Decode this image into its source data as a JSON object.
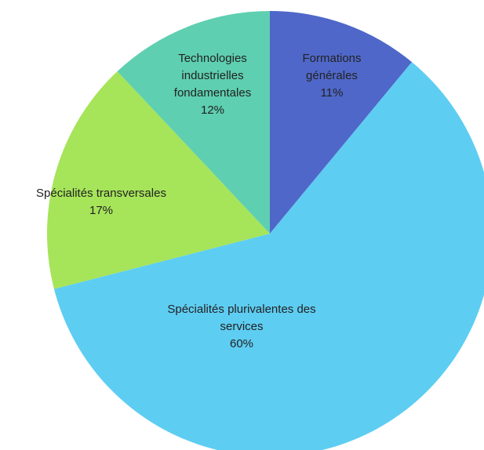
{
  "chart_data": {
    "type": "pie",
    "categories": [
      "Formations générales",
      "Spécialités plurivalentes des services",
      "Spécialités transversales",
      "Technologies industrielles fondamentales"
    ],
    "values": [
      11,
      60,
      17,
      12
    ],
    "value_labels": [
      "11%",
      "60%",
      "17%",
      "12%"
    ],
    "colors": [
      "#4f67c9",
      "#5ecdf2",
      "#a6e45a",
      "#5ecfb0"
    ]
  }
}
